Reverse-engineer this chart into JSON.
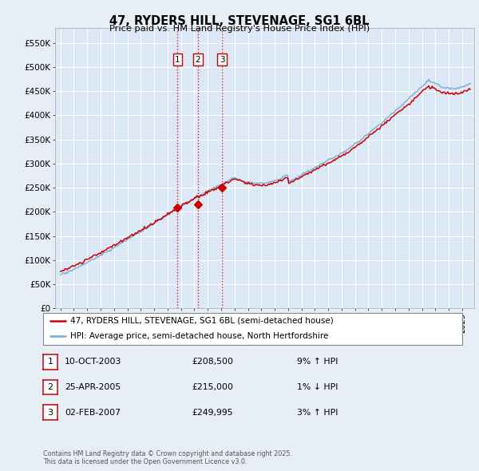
{
  "title": "47, RYDERS HILL, STEVENAGE, SG1 6BL",
  "subtitle": "Price paid vs. HM Land Registry's House Price Index (HPI)",
  "red_label": "47, RYDERS HILL, STEVENAGE, SG1 6BL (semi-detached house)",
  "blue_label": "HPI: Average price, semi-detached house, North Hertfordshire",
  "footer": "Contains HM Land Registry data © Crown copyright and database right 2025.\nThis data is licensed under the Open Government Licence v3.0.",
  "sale_dates": [
    "10-OCT-2003",
    "25-APR-2005",
    "02-FEB-2007"
  ],
  "sale_prices": [
    208500,
    215000,
    249995
  ],
  "sale_hpi_changes": [
    "9% ↑ HPI",
    "1% ↓ HPI",
    "3% ↑ HPI"
  ],
  "ylim": [
    0,
    580000
  ],
  "yticks": [
    0,
    50000,
    100000,
    150000,
    200000,
    250000,
    300000,
    350000,
    400000,
    450000,
    500000,
    550000
  ],
  "ytick_labels": [
    "£0",
    "£50K",
    "£100K",
    "£150K",
    "£200K",
    "£250K",
    "£300K",
    "£350K",
    "£400K",
    "£450K",
    "£500K",
    "£550K"
  ],
  "fig_bg_color": "#e8eef5",
  "plot_bg_color": "#dce8f5",
  "red_color": "#cc0000",
  "blue_color": "#7aaad0",
  "vline_color": "#cc0000",
  "xlim_left": 1994.6,
  "xlim_right": 2025.9
}
